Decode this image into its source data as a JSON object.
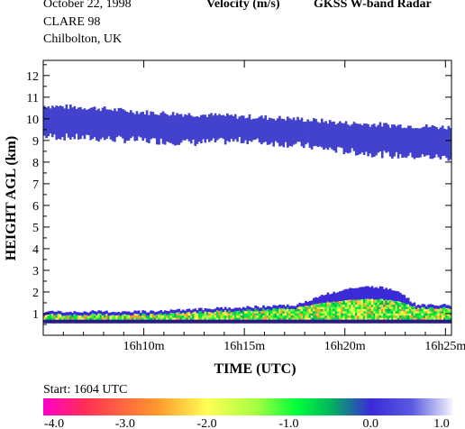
{
  "header": {
    "date": "October  22, 1998",
    "campaign": "CLARE 98",
    "location": "Chilbolton, UK",
    "quantity": "Velocity (m/s)",
    "instrument": "GKSS  W-band Radar",
    "start": "Start: 1604 UTC"
  },
  "chart_data": {
    "type": "heatmap",
    "title": "Velocity (m/s)",
    "xlabel": "TIME (UTC)",
    "ylabel": "HEIGHT AGL (km)",
    "xlim_minutes_utc": [
      "16h05m",
      "16h25m"
    ],
    "x_ticks": [
      "16h10m",
      "16h15m",
      "16h20m",
      "16h25m"
    ],
    "x_tick_minutes": [
      10,
      15,
      20,
      25
    ],
    "ylim": [
      0,
      12.7
    ],
    "y_ticks": [
      1,
      2,
      3,
      4,
      5,
      6,
      7,
      8,
      9,
      10,
      11,
      12
    ],
    "colorbar": {
      "ticks": [
        "-4.0",
        "-3.0",
        "-2.0",
        "-1.0",
        "0.0",
        "1.0"
      ],
      "range": [
        -4,
        1
      ],
      "colors": [
        "#ff00cc",
        "#ff2d55",
        "#ff9a2e",
        "#ffff55",
        "#a6ff40",
        "#00ff3a",
        "#00b85a",
        "#3a2ad8",
        "#5a5ae0",
        "#f2f2ff"
      ]
    },
    "layers": [
      {
        "description_velocity": -0.4,
        "color": "#4242cc",
        "time_minutes": [
          5.0,
          7.5,
          10.0,
          12.5,
          15.0,
          17.5,
          20.0,
          22.5,
          25.3
        ],
        "top_km": [
          10.6,
          10.5,
          10.3,
          10.2,
          10.1,
          10.0,
          9.8,
          9.7,
          9.6
        ],
        "base_km": [
          9.2,
          9.1,
          9.0,
          8.9,
          9.0,
          8.8,
          8.5,
          8.3,
          8.2
        ]
      },
      {
        "description_velocity": -1.0,
        "color": "mixed",
        "time_minutes": [
          5.0,
          10.0,
          15.0,
          17.5,
          19.0,
          21.0,
          22.5,
          23.5,
          25.3
        ],
        "top_km": [
          1.1,
          1.1,
          1.3,
          1.4,
          1.9,
          2.3,
          2.1,
          1.4,
          1.4
        ],
        "base_km": [
          0.6,
          0.6,
          0.6,
          0.6,
          0.6,
          0.6,
          0.6,
          0.6,
          0.6
        ]
      }
    ]
  }
}
